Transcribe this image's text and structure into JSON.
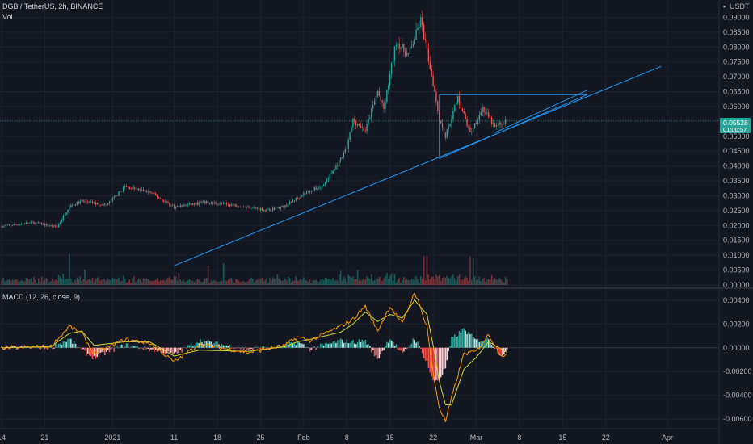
{
  "header": {
    "symbol": "DGB / TetherUS, 2h, BINANCE",
    "vol_label": "Vol",
    "currency": "USDT",
    "macd_label": "MACD (12, 26, close, 9)"
  },
  "price_badge": {
    "price": "0.05528",
    "countdown": "01:00:57",
    "color": "#26a69a"
  },
  "colors": {
    "background": "#131722",
    "up": "#26a69a",
    "down": "#ef5350",
    "trendline": "#2196f3",
    "macd_line": "#ff9800",
    "signal_line": "#cddc39"
  },
  "chart_data": [
    {
      "type": "candlestick",
      "title": "DGB / TetherUS, 2h, BINANCE",
      "ylim": [
        0,
        0.095
      ],
      "y_ticks": [
        "0.09000",
        "0.08500",
        "0.08000",
        "0.07500",
        "0.07000",
        "0.06500",
        "0.06000",
        "0.05500",
        "0.05000",
        "0.04500",
        "0.04000",
        "0.03500",
        "0.03000",
        "0.02500",
        "0.02000",
        "0.01500",
        "0.01000",
        "0.00500",
        "0.00000"
      ],
      "x_ticks": [
        {
          "label": "14",
          "day": 0
        },
        {
          "label": "21",
          "day": 7
        },
        {
          "label": "2021",
          "day": 18
        },
        {
          "label": "11",
          "day": 28
        },
        {
          "label": "18",
          "day": 35
        },
        {
          "label": "25",
          "day": 42
        },
        {
          "label": "Feb",
          "day": 49
        },
        {
          "label": "8",
          "day": 56
        },
        {
          "label": "15",
          "day": 63
        },
        {
          "label": "22",
          "day": 70
        },
        {
          "label": "Mar",
          "day": 77
        },
        {
          "label": "8",
          "day": 84
        },
        {
          "label": "15",
          "day": 91
        },
        {
          "label": "22",
          "day": 98
        },
        {
          "label": "Apr",
          "day": 108
        }
      ],
      "price_path": [
        [
          0,
          0.0197
        ],
        [
          5,
          0.021
        ],
        [
          9,
          0.0195
        ],
        [
          11,
          0.0265
        ],
        [
          13,
          0.0282
        ],
        [
          17,
          0.0268
        ],
        [
          20,
          0.033
        ],
        [
          24,
          0.0312
        ],
        [
          28,
          0.0262
        ],
        [
          33,
          0.0278
        ],
        [
          38,
          0.0268
        ],
        [
          43,
          0.0252
        ],
        [
          46,
          0.0265
        ],
        [
          49,
          0.0308
        ],
        [
          52,
          0.0332
        ],
        [
          55,
          0.042
        ],
        [
          56,
          0.046
        ],
        [
          57,
          0.0555
        ],
        [
          59,
          0.052
        ],
        [
          61,
          0.065
        ],
        [
          62,
          0.059
        ],
        [
          64,
          0.082
        ],
        [
          66,
          0.077
        ],
        [
          68,
          0.089
        ],
        [
          70,
          0.068
        ],
        [
          71,
          0.056
        ],
        [
          72,
          0.05
        ],
        [
          74,
          0.063
        ],
        [
          76,
          0.051
        ],
        [
          78,
          0.0595
        ],
        [
          80,
          0.053
        ],
        [
          82,
          0.0553
        ]
      ],
      "volume_ylim": [
        0,
        0.05
      ],
      "volume_y_ticks": [
        "0.01000",
        "0.00500",
        "0.00000"
      ],
      "trendlines": [
        {
          "points": [
            [
              28,
              0.0065
            ],
            [
              107,
              0.0735
            ]
          ]
        },
        {
          "points": [
            [
              71,
              0.0425
            ],
            [
              95,
              0.064
            ]
          ]
        },
        {
          "points": [
            [
              71,
              0.064
            ],
            [
              95,
              0.064
            ]
          ]
        },
        {
          "points": [
            [
              71,
              0.064
            ],
            [
              71,
              0.0425
            ]
          ]
        }
      ]
    },
    {
      "type": "macd",
      "title": "MACD (12, 26, close, 9)",
      "ylim": [
        -0.0068,
        0.0048
      ],
      "y_ticks": [
        "0.00400",
        "0.00200",
        "0.00000",
        "-0.00200",
        "-0.00400",
        "-0.00600"
      ],
      "macd_path": [
        [
          0,
          0.0
        ],
        [
          8,
          0.0001
        ],
        [
          11,
          0.0018
        ],
        [
          13,
          0.0012
        ],
        [
          15,
          -0.0005
        ],
        [
          20,
          0.0007
        ],
        [
          24,
          0.0004
        ],
        [
          28,
          -0.0012
        ],
        [
          32,
          0.0003
        ],
        [
          40,
          -0.0004
        ],
        [
          46,
          0.0002
        ],
        [
          48,
          0.0009
        ],
        [
          50,
          0.0006
        ],
        [
          55,
          0.0018
        ],
        [
          57,
          0.0024
        ],
        [
          59,
          0.0035
        ],
        [
          61,
          0.0014
        ],
        [
          63,
          0.0035
        ],
        [
          65,
          0.002
        ],
        [
          67,
          0.0047
        ],
        [
          69,
          0.0018
        ],
        [
          70,
          -0.0022
        ],
        [
          71,
          -0.005
        ],
        [
          72,
          -0.0062
        ],
        [
          73,
          -0.0042
        ],
        [
          75,
          -0.0005
        ],
        [
          77,
          -0.0003
        ],
        [
          79,
          0.0011
        ],
        [
          81,
          -0.0006
        ],
        [
          82,
          -0.0006
        ]
      ],
      "signal_path": [
        [
          0,
          0.0
        ],
        [
          8,
          0.0001
        ],
        [
          11,
          0.0012
        ],
        [
          13,
          0.0014
        ],
        [
          15,
          0.0002
        ],
        [
          20,
          0.0005
        ],
        [
          24,
          0.0005
        ],
        [
          28,
          -0.0007
        ],
        [
          32,
          -0.0002
        ],
        [
          40,
          -0.0003
        ],
        [
          46,
          0.0001
        ],
        [
          48,
          0.0005
        ],
        [
          50,
          0.0007
        ],
        [
          55,
          0.0013
        ],
        [
          57,
          0.002
        ],
        [
          59,
          0.003
        ],
        [
          61,
          0.0022
        ],
        [
          63,
          0.0028
        ],
        [
          65,
          0.0025
        ],
        [
          67,
          0.004
        ],
        [
          69,
          0.0028
        ],
        [
          70,
          0.0002
        ],
        [
          71,
          -0.0028
        ],
        [
          72,
          -0.0048
        ],
        [
          73,
          -0.0048
        ],
        [
          75,
          -0.0018
        ],
        [
          77,
          -0.0008
        ],
        [
          79,
          0.0005
        ],
        [
          81,
          -0.0001
        ],
        [
          82,
          -0.0004
        ]
      ]
    }
  ]
}
